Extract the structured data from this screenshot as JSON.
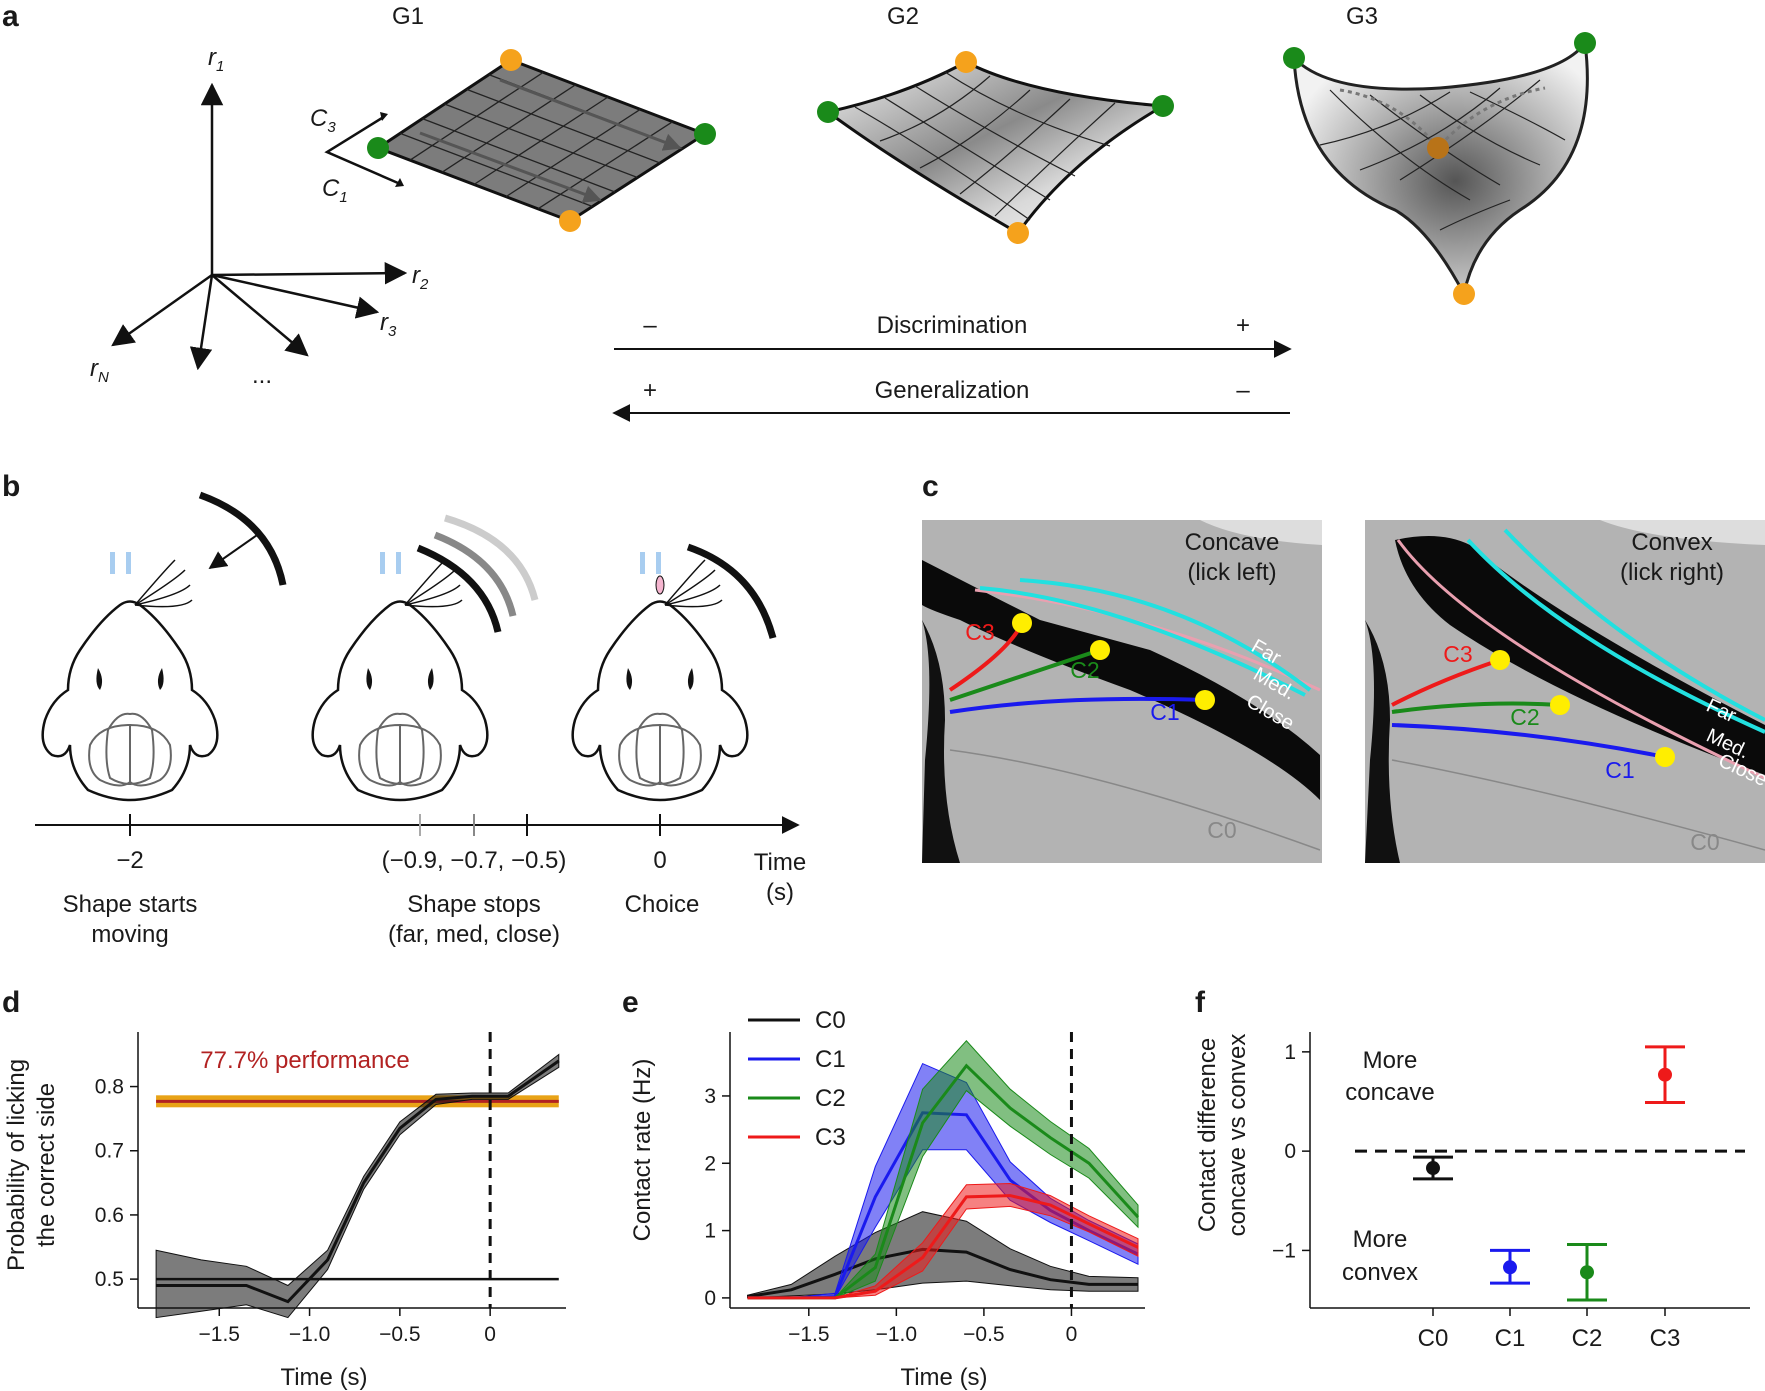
{
  "panels": {
    "a": "a",
    "b": "b",
    "c": "c",
    "d": "d",
    "e": "e",
    "f": "f"
  },
  "a": {
    "manifolds": [
      "G1",
      "G2",
      "G3"
    ],
    "axes": {
      "r1": "r",
      "r1_sub": "1",
      "r2": "r",
      "r2_sub": "2",
      "r3": "r",
      "r3_sub": "3",
      "rN": "r",
      "rN_sub": "N",
      "dots": "..."
    },
    "shape_axes": {
      "c3": "C",
      "c3_sub": "3",
      "c1": "C",
      "c1_sub": "1"
    },
    "discrimination": {
      "label": "Discrimination",
      "left": "–",
      "right": "+"
    },
    "generalization": {
      "label": "Generalization",
      "left": "+",
      "right": "–"
    }
  },
  "b": {
    "events": [
      {
        "tick": "−2",
        "line1": "Shape starts",
        "line2": "moving"
      },
      {
        "tick": "(−0.9, −0.7, −0.5)",
        "line1": "Shape stops",
        "line2": "(far, med, close)"
      },
      {
        "tick": "0",
        "line1": "Choice",
        "line2": ""
      }
    ],
    "time_label": {
      "line1": "Time",
      "line2": "(s)"
    }
  },
  "c": {
    "concave": {
      "title1": "Concave",
      "title2": "(lick left)"
    },
    "convex": {
      "title1": "Convex",
      "title2": "(lick right)"
    },
    "whiskers": [
      "C1",
      "C2",
      "C3",
      "C0"
    ],
    "positions": [
      "Far",
      "Med.",
      "Close"
    ],
    "colors": {
      "C1": "#1a1aee",
      "C2": "#1a8a1a",
      "C3": "#ee1a1a",
      "C0": "#888888",
      "cyan": "#22e0e0",
      "yellow": "#ffee00"
    }
  },
  "chart_data": [
    {
      "panel": "d",
      "type": "line",
      "xlabel": "Time (s)",
      "ylabel_line1": "Probability of licking",
      "ylabel_line2": "the correct side",
      "xlim": [
        -1.95,
        0.42
      ],
      "ylim": [
        0.455,
        0.885
      ],
      "xticks": [
        -1.5,
        -1.0,
        -0.5,
        0
      ],
      "xtick_labels": [
        "−1.5",
        "−1.0",
        "−0.5",
        "0"
      ],
      "yticks": [
        0.5,
        0.6,
        0.7,
        0.8
      ],
      "ytick_labels": [
        "0.5",
        "0.6",
        "0.7",
        "0.8"
      ],
      "performance": {
        "label": "77.7% performance",
        "value": 0.777,
        "color": "#b22222",
        "band_color": "#e8a317"
      },
      "chance_level": 0.5,
      "series": [
        {
          "name": "probability",
          "x": [
            -1.85,
            -1.6,
            -1.35,
            -1.12,
            -0.9,
            -0.7,
            -0.5,
            -0.3,
            -0.1,
            0.1,
            0.38
          ],
          "y": [
            0.49,
            0.49,
            0.49,
            0.465,
            0.53,
            0.65,
            0.735,
            0.78,
            0.785,
            0.785,
            0.84
          ],
          "lo": [
            0.44,
            0.45,
            0.46,
            0.44,
            0.515,
            0.64,
            0.725,
            0.772,
            0.78,
            0.78,
            0.83
          ],
          "hi": [
            0.545,
            0.53,
            0.52,
            0.49,
            0.545,
            0.66,
            0.745,
            0.788,
            0.79,
            0.79,
            0.85
          ]
        }
      ]
    },
    {
      "panel": "e",
      "type": "line",
      "xlabel": "Time (s)",
      "ylabel": "Contact rate (Hz)",
      "xlim": [
        -1.95,
        0.42
      ],
      "ylim": [
        -0.15,
        3.95
      ],
      "xticks": [
        -1.5,
        -1.0,
        -0.5,
        0
      ],
      "xtick_labels": [
        "−1.5",
        "−1.0",
        "−0.5",
        "0"
      ],
      "yticks": [
        0,
        1,
        2,
        3
      ],
      "ytick_labels": [
        "0",
        "1",
        "2",
        "3"
      ],
      "series": [
        {
          "name": "C0",
          "color": "#111111",
          "x": [
            -1.85,
            -1.6,
            -1.35,
            -1.12,
            -0.85,
            -0.6,
            -0.35,
            -0.12,
            0.1,
            0.38
          ],
          "y": [
            0.02,
            0.12,
            0.35,
            0.58,
            0.72,
            0.68,
            0.42,
            0.27,
            0.2,
            0.2
          ],
          "lo": [
            0.0,
            0.03,
            0.06,
            0.12,
            0.22,
            0.25,
            0.18,
            0.12,
            0.1,
            0.1
          ],
          "hi": [
            0.04,
            0.2,
            0.62,
            0.97,
            1.28,
            1.14,
            0.73,
            0.47,
            0.32,
            0.3
          ]
        },
        {
          "name": "C1",
          "color": "#1a1aee",
          "x": [
            -1.85,
            -1.6,
            -1.35,
            -1.12,
            -0.85,
            -0.6,
            -0.35,
            -0.12,
            0.1,
            0.38
          ],
          "y": [
            0.0,
            0.0,
            0.02,
            1.5,
            2.75,
            2.72,
            1.75,
            1.3,
            1.0,
            0.65
          ],
          "lo": [
            0.0,
            0.0,
            0.0,
            1.05,
            2.2,
            2.2,
            1.45,
            1.12,
            0.85,
            0.5
          ],
          "hi": [
            0.0,
            0.0,
            0.07,
            1.95,
            3.48,
            3.2,
            2.02,
            1.48,
            1.15,
            0.8
          ]
        },
        {
          "name": "C2",
          "color": "#1a8a1a",
          "x": [
            -1.85,
            -1.6,
            -1.35,
            -1.12,
            -0.85,
            -0.6,
            -0.35,
            -0.12,
            0.1,
            0.38
          ],
          "y": [
            0.0,
            0.0,
            0.0,
            0.45,
            2.6,
            3.45,
            2.82,
            2.38,
            2.0,
            1.2
          ],
          "lo": [
            0.0,
            0.0,
            0.0,
            0.25,
            2.1,
            3.08,
            2.55,
            2.13,
            1.78,
            1.05
          ],
          "hi": [
            0.0,
            0.0,
            0.0,
            0.65,
            3.1,
            3.82,
            3.1,
            2.62,
            2.22,
            1.38
          ]
        },
        {
          "name": "C3",
          "color": "#ee1a1a",
          "x": [
            -1.85,
            -1.6,
            -1.35,
            -1.12,
            -0.85,
            -0.6,
            -0.35,
            -0.12,
            0.1,
            0.38
          ],
          "y": [
            0.0,
            0.0,
            0.0,
            0.1,
            0.6,
            1.5,
            1.52,
            1.38,
            1.1,
            0.75
          ],
          "lo": [
            0.0,
            0.0,
            0.0,
            0.04,
            0.4,
            1.32,
            1.36,
            1.22,
            0.98,
            0.62
          ],
          "hi": [
            0.0,
            0.0,
            0.0,
            0.18,
            0.82,
            1.68,
            1.7,
            1.52,
            1.22,
            0.88
          ]
        }
      ]
    },
    {
      "panel": "f",
      "type": "scatter",
      "ylabel_line1": "Contact difference",
      "ylabel_line2": "concave vs convex",
      "categories": [
        "C0",
        "C1",
        "C2",
        "C3"
      ],
      "values": [
        -0.17,
        -1.17,
        -1.22,
        0.77
      ],
      "err_lo": [
        -0.28,
        -1.33,
        -1.5,
        0.49
      ],
      "err_hi": [
        -0.06,
        -1.0,
        -0.94,
        1.05
      ],
      "colors": [
        "#111111",
        "#1a1aee",
        "#1a8a1a",
        "#ee1a1a"
      ],
      "ylim": [
        -1.58,
        1.2
      ],
      "yticks": [
        -1,
        0,
        1
      ],
      "ytick_labels": [
        "−1",
        "0",
        "1"
      ],
      "annotations": {
        "top1": "More",
        "top2": "concave",
        "bottom1": "More",
        "bottom2": "convex"
      }
    }
  ]
}
